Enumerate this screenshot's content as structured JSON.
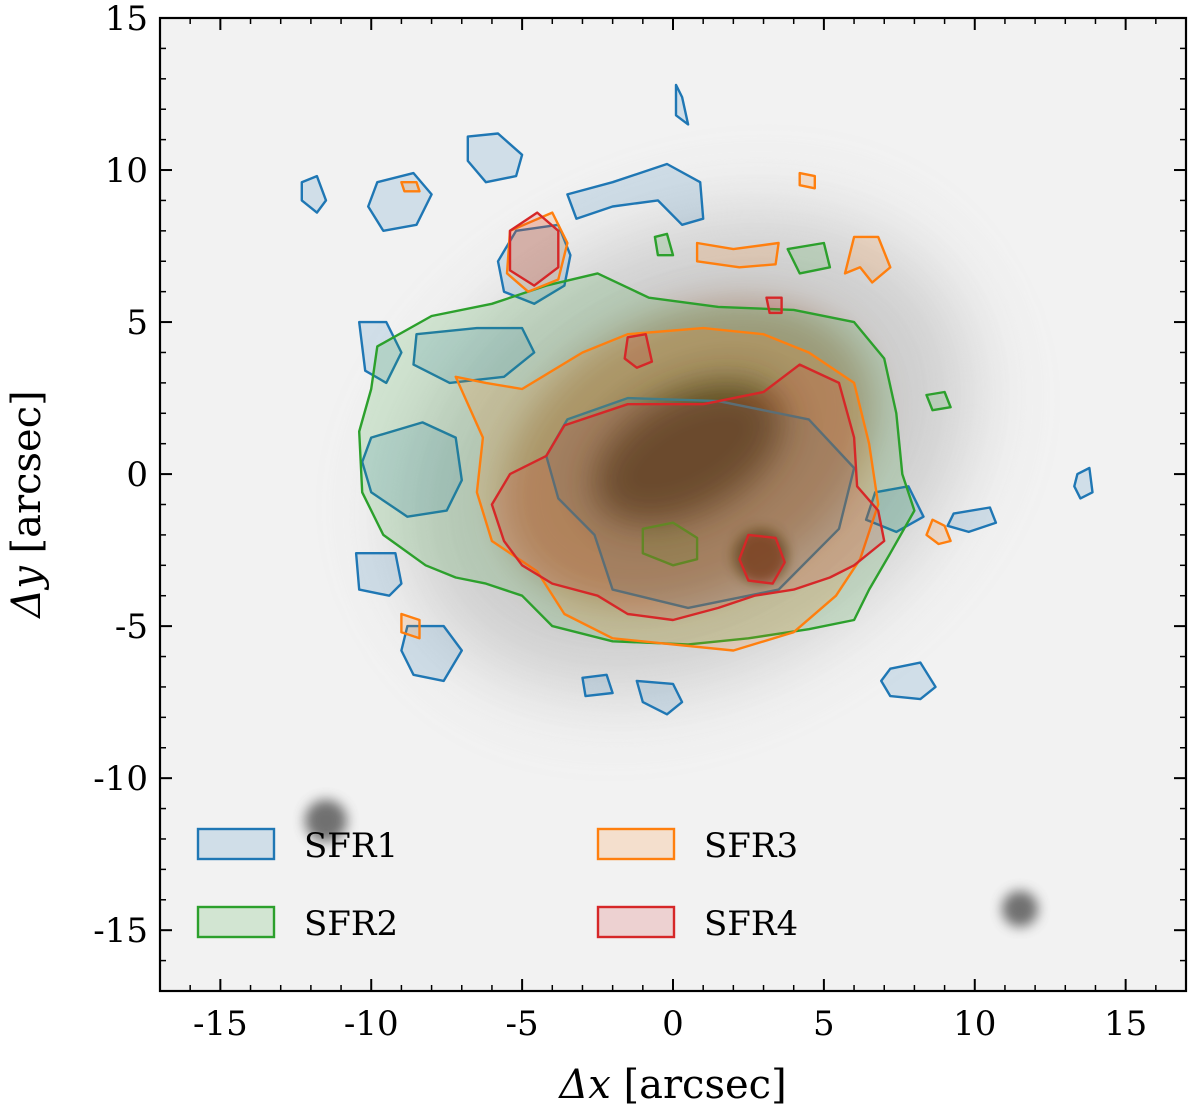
{
  "chart_data": {
    "type": "image-contour",
    "title": "",
    "xlabel_symbol": "Δx",
    "xlabel_unit": "[arcsec]",
    "ylabel_symbol": "Δy",
    "ylabel_unit": "[arcsec]",
    "xlim": [
      -17,
      17
    ],
    "ylim": [
      -17,
      15
    ],
    "xticks": [
      -15,
      -10,
      -5,
      0,
      5,
      10,
      15
    ],
    "yticks": [
      -15,
      -10,
      -5,
      0,
      5,
      10,
      15
    ],
    "xtick_labels": [
      "-15",
      "-10",
      "-5",
      "0",
      "5",
      "10",
      "15"
    ],
    "ytick_labels": [
      "-15",
      "-10",
      "-5",
      "0",
      "5",
      "10",
      "15"
    ],
    "legend_position": "lower-left",
    "legend_columns": 2,
    "background_sources": [
      {
        "x": 0.5,
        "y": 0.7,
        "rx": 6.2,
        "ry": 3.0,
        "angle": -28,
        "role": "galaxy-core"
      },
      {
        "x": 2.9,
        "y": -2.7,
        "r": 0.9,
        "role": "bright-knot"
      },
      {
        "x": -11.5,
        "y": -11.4,
        "r": 0.7,
        "role": "star"
      },
      {
        "x": 11.5,
        "y": -14.3,
        "r": 0.6,
        "role": "star"
      }
    ],
    "series": [
      {
        "name": "SFR1",
        "color": "#1f77b4",
        "regions": [
          [
            [
              -8.5,
              4.6
            ],
            [
              -6.5,
              4.8
            ],
            [
              -5.0,
              4.8
            ],
            [
              -4.6,
              4.0
            ],
            [
              -5.6,
              3.2
            ],
            [
              -7.4,
              3.0
            ],
            [
              -8.6,
              3.6
            ]
          ],
          [
            [
              -10.0,
              1.2
            ],
            [
              -8.3,
              1.7
            ],
            [
              -7.2,
              1.2
            ],
            [
              -7.0,
              -0.2
            ],
            [
              -7.5,
              -1.2
            ],
            [
              -8.8,
              -1.4
            ],
            [
              -10.0,
              -0.6
            ],
            [
              -10.3,
              0.4
            ]
          ],
          [
            [
              -3.5,
              1.8
            ],
            [
              -1.5,
              2.5
            ],
            [
              1.5,
              2.4
            ],
            [
              4.5,
              1.8
            ],
            [
              6.0,
              0.2
            ],
            [
              5.5,
              -1.8
            ],
            [
              3.5,
              -3.8
            ],
            [
              0.5,
              -4.4
            ],
            [
              -2.0,
              -3.8
            ],
            [
              -2.6,
              -2.0
            ],
            [
              -3.8,
              -0.8
            ],
            [
              -4.2,
              0.6
            ]
          ],
          [
            [
              -10.4,
              5.0
            ],
            [
              -9.5,
              5.0
            ],
            [
              -9.0,
              4.0
            ],
            [
              -9.5,
              3.0
            ],
            [
              -10.2,
              3.4
            ]
          ],
          [
            [
              -12.3,
              9.6
            ],
            [
              -11.8,
              9.8
            ],
            [
              -11.5,
              9.0
            ],
            [
              -11.8,
              8.6
            ],
            [
              -12.3,
              9.0
            ]
          ],
          [
            [
              -9.8,
              9.6
            ],
            [
              -8.6,
              9.9
            ],
            [
              -8.0,
              9.2
            ],
            [
              -8.5,
              8.2
            ],
            [
              -9.6,
              8.0
            ],
            [
              -10.1,
              8.8
            ]
          ],
          [
            [
              -6.8,
              11.1
            ],
            [
              -5.8,
              11.2
            ],
            [
              -5.0,
              10.5
            ],
            [
              -5.2,
              9.8
            ],
            [
              -6.2,
              9.6
            ],
            [
              -6.8,
              10.3
            ]
          ],
          [
            [
              -3.5,
              9.2
            ],
            [
              -2.0,
              9.6
            ],
            [
              -0.2,
              10.2
            ],
            [
              0.9,
              9.6
            ],
            [
              1.0,
              8.4
            ],
            [
              0.3,
              8.2
            ],
            [
              -0.5,
              9.0
            ],
            [
              -2.0,
              8.8
            ],
            [
              -3.2,
              8.4
            ]
          ],
          [
            [
              -5.2,
              8.0
            ],
            [
              -3.8,
              8.2
            ],
            [
              -3.4,
              7.2
            ],
            [
              -3.6,
              6.2
            ],
            [
              -4.6,
              5.6
            ],
            [
              -5.6,
              6.0
            ],
            [
              -5.8,
              7.0
            ]
          ],
          [
            [
              0.1,
              12.8
            ],
            [
              0.3,
              12.4
            ],
            [
              0.5,
              11.5
            ],
            [
              0.1,
              11.8
            ]
          ],
          [
            [
              -10.5,
              -2.6
            ],
            [
              -9.2,
              -2.6
            ],
            [
              -9.0,
              -3.6
            ],
            [
              -9.4,
              -4.0
            ],
            [
              -10.4,
              -3.8
            ]
          ],
          [
            [
              -8.8,
              -5.0
            ],
            [
              -7.6,
              -5.0
            ],
            [
              -7.0,
              -5.8
            ],
            [
              -7.6,
              -6.8
            ],
            [
              -8.6,
              -6.6
            ],
            [
              -9.0,
              -5.8
            ]
          ],
          [
            [
              6.7,
              -0.6
            ],
            [
              7.8,
              -0.4
            ],
            [
              8.3,
              -1.4
            ],
            [
              7.4,
              -1.9
            ],
            [
              6.4,
              -1.5
            ]
          ],
          [
            [
              9.3,
              -1.3
            ],
            [
              10.5,
              -1.1
            ],
            [
              10.7,
              -1.6
            ],
            [
              9.8,
              -1.9
            ],
            [
              9.1,
              -1.7
            ]
          ],
          [
            [
              7.2,
              -6.4
            ],
            [
              8.2,
              -6.2
            ],
            [
              8.7,
              -7.0
            ],
            [
              8.2,
              -7.4
            ],
            [
              7.2,
              -7.3
            ],
            [
              6.9,
              -6.8
            ]
          ],
          [
            [
              -3.0,
              -6.7
            ],
            [
              -2.2,
              -6.6
            ],
            [
              -2.0,
              -7.2
            ],
            [
              -2.9,
              -7.3
            ]
          ],
          [
            [
              -1.2,
              -6.8
            ],
            [
              0.0,
              -6.9
            ],
            [
              0.3,
              -7.5
            ],
            [
              -0.2,
              -7.9
            ],
            [
              -1.0,
              -7.5
            ]
          ],
          [
            [
              13.4,
              0.0
            ],
            [
              13.8,
              0.2
            ],
            [
              13.9,
              -0.6
            ],
            [
              13.5,
              -0.8
            ],
            [
              13.3,
              -0.4
            ]
          ]
        ]
      },
      {
        "name": "SFR2",
        "color": "#2ca02c",
        "regions": [
          [
            [
              -9.8,
              4.2
            ],
            [
              -8.0,
              5.2
            ],
            [
              -6.0,
              5.6
            ],
            [
              -4.2,
              6.2
            ],
            [
              -2.5,
              6.6
            ],
            [
              -0.8,
              5.8
            ],
            [
              1.5,
              5.5
            ],
            [
              4.0,
              5.4
            ],
            [
              6.0,
              5.0
            ],
            [
              7.0,
              3.8
            ],
            [
              7.4,
              2.0
            ],
            [
              7.6,
              0.0
            ],
            [
              8.0,
              -1.2
            ],
            [
              7.2,
              -2.6
            ],
            [
              6.5,
              -3.8
            ],
            [
              6.0,
              -4.8
            ],
            [
              4.5,
              -5.1
            ],
            [
              2.5,
              -5.4
            ],
            [
              0.5,
              -5.6
            ],
            [
              -2.0,
              -5.5
            ],
            [
              -4.0,
              -5.0
            ],
            [
              -5.0,
              -4.0
            ],
            [
              -6.2,
              -3.6
            ],
            [
              -7.2,
              -3.4
            ],
            [
              -8.2,
              -3.0
            ],
            [
              -9.6,
              -2.0
            ],
            [
              -10.3,
              -0.6
            ],
            [
              -10.4,
              1.4
            ],
            [
              -10.0,
              2.8
            ]
          ],
          [
            [
              -1.0,
              -1.8
            ],
            [
              0.0,
              -1.6
            ],
            [
              0.8,
              -2.1
            ],
            [
              0.8,
              -2.8
            ],
            [
              0.0,
              -3.0
            ],
            [
              -1.0,
              -2.6
            ]
          ],
          [
            [
              3.8,
              7.4
            ],
            [
              5.0,
              7.6
            ],
            [
              5.2,
              6.8
            ],
            [
              4.2,
              6.6
            ]
          ],
          [
            [
              -0.6,
              7.8
            ],
            [
              -0.2,
              7.9
            ],
            [
              0.0,
              7.2
            ],
            [
              -0.5,
              7.2
            ]
          ],
          [
            [
              8.4,
              2.6
            ],
            [
              9.0,
              2.7
            ],
            [
              9.2,
              2.2
            ],
            [
              8.6,
              2.1
            ]
          ]
        ]
      },
      {
        "name": "SFR3",
        "color": "#ff7f0e",
        "regions": [
          [
            [
              -7.2,
              3.2
            ],
            [
              -6.2,
              3.0
            ],
            [
              -5.0,
              2.8
            ],
            [
              -3.0,
              4.0
            ],
            [
              -1.5,
              4.6
            ],
            [
              1.0,
              4.8
            ],
            [
              3.0,
              4.6
            ],
            [
              4.5,
              4.0
            ],
            [
              6.0,
              3.0
            ],
            [
              6.5,
              1.0
            ],
            [
              6.8,
              -1.0
            ],
            [
              6.2,
              -2.8
            ],
            [
              5.4,
              -4.0
            ],
            [
              4.0,
              -5.2
            ],
            [
              2.0,
              -5.8
            ],
            [
              0.0,
              -5.6
            ],
            [
              -2.0,
              -5.4
            ],
            [
              -3.6,
              -4.6
            ],
            [
              -4.5,
              -3.2
            ],
            [
              -6.0,
              -2.2
            ],
            [
              -6.5,
              -0.6
            ],
            [
              -6.3,
              1.2
            ]
          ],
          [
            [
              -5.4,
              8.0
            ],
            [
              -4.0,
              8.6
            ],
            [
              -3.5,
              7.6
            ],
            [
              -3.8,
              6.4
            ],
            [
              -4.8,
              6.0
            ],
            [
              -5.5,
              6.6
            ]
          ],
          [
            [
              0.8,
              7.6
            ],
            [
              2.0,
              7.4
            ],
            [
              3.5,
              7.6
            ],
            [
              3.4,
              6.9
            ],
            [
              2.2,
              6.8
            ],
            [
              0.8,
              7.0
            ]
          ],
          [
            [
              6.0,
              7.8
            ],
            [
              6.8,
              7.8
            ],
            [
              7.2,
              6.8
            ],
            [
              6.6,
              6.3
            ],
            [
              6.2,
              6.8
            ],
            [
              5.7,
              6.6
            ]
          ],
          [
            [
              -9.0,
              9.6
            ],
            [
              -8.5,
              9.6
            ],
            [
              -8.4,
              9.3
            ],
            [
              -8.9,
              9.3
            ]
          ],
          [
            [
              4.2,
              9.9
            ],
            [
              4.7,
              9.8
            ],
            [
              4.7,
              9.4
            ],
            [
              4.2,
              9.5
            ]
          ],
          [
            [
              8.6,
              -1.5
            ],
            [
              9.0,
              -1.7
            ],
            [
              9.2,
              -2.2
            ],
            [
              8.8,
              -2.3
            ],
            [
              8.4,
              -2.0
            ]
          ],
          [
            [
              -9.0,
              -4.6
            ],
            [
              -8.4,
              -4.8
            ],
            [
              -8.4,
              -5.4
            ],
            [
              -9.0,
              -5.2
            ]
          ]
        ]
      },
      {
        "name": "SFR4",
        "color": "#d62728",
        "regions": [
          [
            [
              -3.6,
              1.6
            ],
            [
              -1.5,
              2.3
            ],
            [
              1.0,
              2.3
            ],
            [
              3.0,
              2.7
            ],
            [
              4.2,
              3.6
            ],
            [
              5.5,
              3.0
            ],
            [
              6.0,
              1.2
            ],
            [
              6.1,
              -0.4
            ],
            [
              6.8,
              -1.2
            ],
            [
              7.0,
              -2.2
            ],
            [
              6.0,
              -3.0
            ],
            [
              5.2,
              -3.4
            ],
            [
              4.0,
              -3.8
            ],
            [
              2.7,
              -4.0
            ],
            [
              1.5,
              -4.4
            ],
            [
              0.0,
              -4.8
            ],
            [
              -1.5,
              -4.6
            ],
            [
              -2.5,
              -4.0
            ],
            [
              -4.0,
              -3.6
            ],
            [
              -5.0,
              -3.0
            ],
            [
              -5.6,
              -2.2
            ],
            [
              -6.0,
              -1.0
            ],
            [
              -5.4,
              0.0
            ],
            [
              -4.2,
              0.6
            ]
          ],
          [
            [
              -5.4,
              8.0
            ],
            [
              -4.5,
              8.6
            ],
            [
              -3.8,
              8.0
            ],
            [
              -3.8,
              6.8
            ],
            [
              -4.6,
              6.2
            ],
            [
              -5.4,
              6.7
            ]
          ],
          [
            [
              -1.5,
              4.5
            ],
            [
              -0.9,
              4.6
            ],
            [
              -0.7,
              3.7
            ],
            [
              -1.2,
              3.5
            ],
            [
              -1.6,
              3.8
            ]
          ],
          [
            [
              2.5,
              -2.0
            ],
            [
              3.4,
              -2.1
            ],
            [
              3.7,
              -2.9
            ],
            [
              3.3,
              -3.6
            ],
            [
              2.5,
              -3.5
            ],
            [
              2.2,
              -2.8
            ]
          ],
          [
            [
              3.1,
              5.8
            ],
            [
              3.6,
              5.8
            ],
            [
              3.6,
              5.3
            ],
            [
              3.2,
              5.3
            ]
          ]
        ]
      }
    ]
  }
}
